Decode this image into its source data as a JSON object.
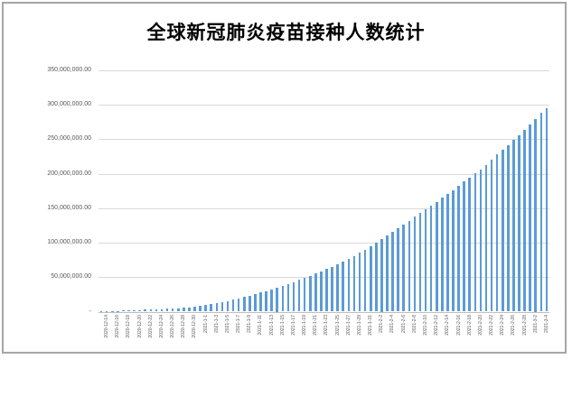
{
  "chart_data": {
    "type": "bar",
    "title": "全球新冠肺炎疫苗接种人数统计",
    "xlabel": "",
    "ylabel": "",
    "legend": false,
    "grid": true,
    "y_axis_labels": [
      "350,000,000.00",
      "300,000,000.00",
      "250,000,000.00",
      "200,000,000.00",
      "150,000,000.00",
      "100,000,000.00",
      "50,000,000.00",
      "-"
    ],
    "ylim_millions": [
      0,
      350
    ],
    "x_tick_every": 2,
    "bar_color": "#5b9bd5",
    "gridline_color": "#d9d9d9",
    "axis_line_color": "#bfbfbf",
    "frame_border_color": "#a6a6a6",
    "tick_label_color": "#595959",
    "dates": [
      "2020-12-14",
      "2020-12-15",
      "2020-12-16",
      "2020-12-17",
      "2020-12-18",
      "2020-12-19",
      "2020-12-20",
      "2020-12-21",
      "2020-12-22",
      "2020-12-23",
      "2020-12-24",
      "2020-12-25",
      "2020-12-26",
      "2020-12-27",
      "2020-12-28",
      "2020-12-29",
      "2020-12-30",
      "2020-12-31",
      "2021-1-1",
      "2021-1-2",
      "2021-1-3",
      "2021-1-4",
      "2021-1-5",
      "2021-1-6",
      "2021-1-7",
      "2021-1-8",
      "2021-1-9",
      "2021-1-10",
      "2021-1-11",
      "2021-1-12",
      "2021-1-13",
      "2021-1-14",
      "2021-1-15",
      "2021-1-16",
      "2021-1-17",
      "2021-1-18",
      "2021-1-19",
      "2021-1-20",
      "2021-1-21",
      "2021-1-22",
      "2021-1-23",
      "2021-1-24",
      "2021-1-25",
      "2021-1-26",
      "2021-1-27",
      "2021-1-28",
      "2021-1-29",
      "2021-1-30",
      "2021-1-31",
      "2021-2-1",
      "2021-2-2",
      "2021-2-3",
      "2021-2-4",
      "2021-2-5",
      "2021-2-6",
      "2021-2-7",
      "2021-2-8",
      "2021-2-9",
      "2021-2-10",
      "2021-2-11",
      "2021-2-12",
      "2021-2-13",
      "2021-2-14",
      "2021-2-15",
      "2021-2-16",
      "2021-2-17",
      "2021-2-18",
      "2021-2-19",
      "2021-2-20",
      "2021-2-21",
      "2021-2-22",
      "2021-2-23",
      "2021-2-24",
      "2021-2-25",
      "2021-2-26",
      "2021-2-27",
      "2021-2-28",
      "2021-3-1",
      "2021-3-2",
      "2021-3-3",
      "2021-3-4",
      "2021-3-5"
    ],
    "values_millions": [
      0.3,
      0.6,
      0.9,
      1.1,
      1.4,
      1.7,
      2.0,
      2.3,
      2.7,
      3.1,
      3.4,
      3.7,
      4.0,
      4.4,
      4.9,
      5.5,
      6.3,
      7.3,
      8.5,
      9.7,
      11.0,
      12.3,
      13.8,
      15.4,
      17.2,
      19.2,
      21.2,
      23.2,
      25.4,
      27.6,
      30.0,
      32.4,
      35.0,
      37.6,
      40.2,
      43.0,
      45.8,
      48.8,
      51.8,
      55.0,
      58.2,
      61.5,
      65.0,
      68.8,
      72.8,
      76.8,
      81.0,
      85.5,
      90.0,
      95.0,
      100.0,
      105.0,
      110.0,
      115.5,
      121.0,
      126.5,
      132.0,
      137.5,
      143.0,
      148.5,
      154.0,
      159.5,
      165.0,
      170.5,
      176.5,
      182.5,
      188.5,
      194.5,
      200.5,
      206.5,
      213.0,
      220.0,
      228.0,
      235.0,
      242.0,
      249.0,
      256.0,
      264.0,
      272.0,
      280.0,
      288.0,
      295.0
    ]
  }
}
